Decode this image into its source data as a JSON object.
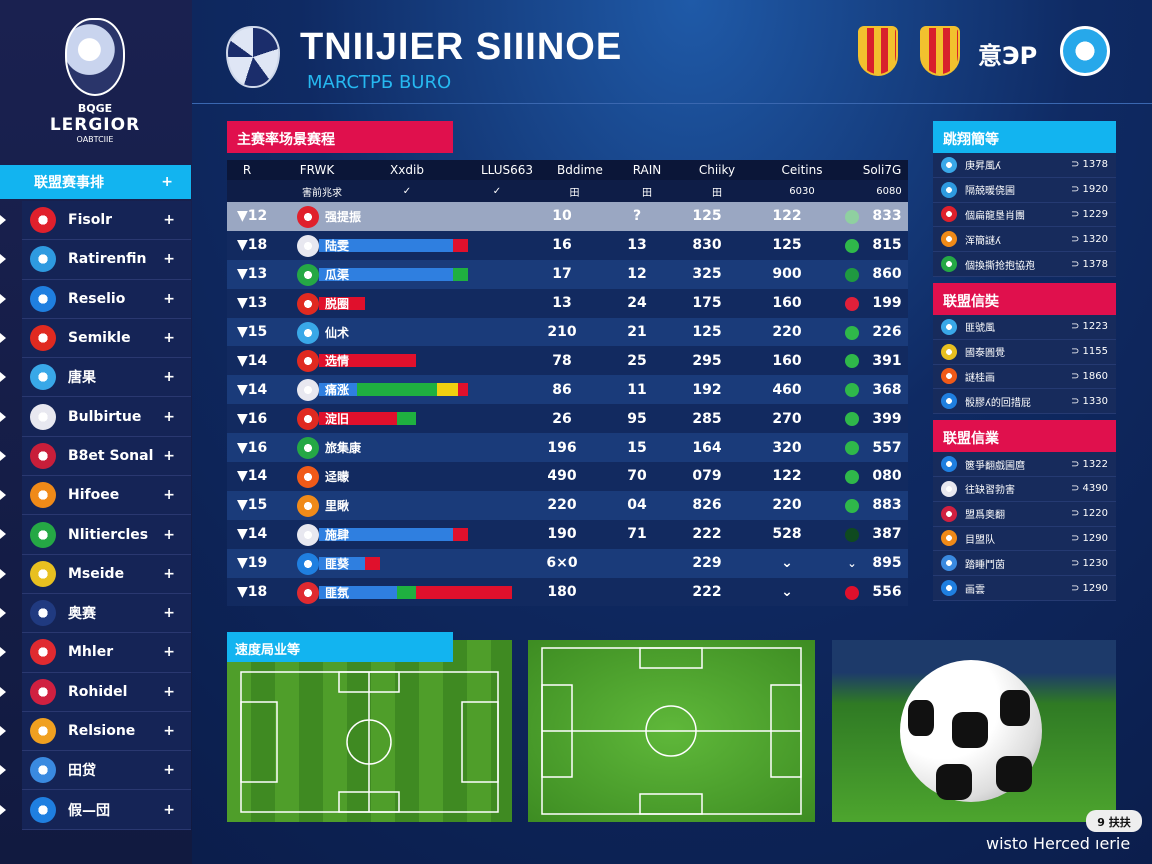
{
  "sidebar": {
    "logo": {
      "line1": "BQGE",
      "line2": "LERGIOR",
      "line3": "OABTCIIE"
    },
    "header": "联盟赛事排",
    "items": [
      {
        "label": "Fisolr",
        "color": "#e0202c"
      },
      {
        "label": "Ratirenfin",
        "color": "#2e9ae0"
      },
      {
        "label": "Reselio",
        "color": "#1f7fe0"
      },
      {
        "label": "Semikle",
        "color": "#e02a20"
      },
      {
        "label": "唐果",
        "color": "#39a8e8"
      },
      {
        "label": "Bulbirtue",
        "color": "#e8e8f0"
      },
      {
        "label": "B8et Sonal",
        "color": "#c81e3a"
      },
      {
        "label": "Hifoee",
        "color": "#f08a18"
      },
      {
        "label": "Nlitiercles",
        "color": "#25a845"
      },
      {
        "label": "Mseide",
        "color": "#e8c020"
      },
      {
        "label": "奥赛",
        "color": "#203a80"
      },
      {
        "label": "Mhler",
        "color": "#e02a30"
      },
      {
        "label": "Rohidel",
        "color": "#d02040"
      },
      {
        "label": "Relsione",
        "color": "#f0a020"
      },
      {
        "label": "田贷",
        "color": "#3a8ae0"
      },
      {
        "label": "假—団",
        "color": "#1f7fe0"
      }
    ],
    "plus": "+"
  },
  "header": {
    "title": "TNIIJIER SIIINOE",
    "subtitle": "MARCTPБ BURO",
    "right_text": "意ЭP"
  },
  "table": {
    "title": "主赛率场景赛程",
    "columns": [
      "R",
      "FRWK",
      "Xxdib",
      "LLUS663",
      "Bddime",
      "RAIN",
      "Chiiky",
      "Ceitins",
      "Soli7G"
    ],
    "subheader": [
      "害前兆求",
      "✓",
      "✓",
      "田",
      "田",
      "田",
      "6030",
      "6080"
    ],
    "rows": [
      {
        "rank": "▼12",
        "team": "强提振",
        "logo": "#e0202c",
        "bar": [],
        "v": [
          "10",
          "?",
          "125",
          "122",
          "833"
        ],
        "status": "#8fd0a0",
        "selected": true
      },
      {
        "rank": "▼18",
        "team": "陆雯",
        "logo": "#e8e8f0",
        "bar": [
          [
            "#2f7fe0",
            64
          ],
          [
            "#e0102c",
            7
          ]
        ],
        "v": [
          "16",
          "13",
          "830",
          "125",
          "815"
        ],
        "status": "#2fb84a"
      },
      {
        "rank": "▼13",
        "team": "瓜渠",
        "logo": "#25a845",
        "bar": [
          [
            "#2f7fe0",
            64
          ],
          [
            "#1fb040",
            7
          ]
        ],
        "v": [
          "17",
          "12",
          "325",
          "900",
          "860"
        ],
        "status": "#1f9a40"
      },
      {
        "rank": "▼13",
        "team": "脱圈",
        "logo": "#e02a20",
        "bar": [
          [
            "#e0102c",
            22
          ]
        ],
        "v": [
          "13",
          "24",
          "175",
          "160",
          "199"
        ],
        "status": "#e0203a"
      },
      {
        "rank": "▼15",
        "team": "仙术",
        "logo": "#39a8e8",
        "bar": [],
        "v": [
          "210",
          "21",
          "125",
          "220",
          "226"
        ],
        "status": "#2fb84a"
      },
      {
        "rank": "▼14",
        "team": "选情",
        "logo": "#e02a20",
        "bar": [
          [
            "#e0102c",
            46
          ]
        ],
        "v": [
          "78",
          "25",
          "295",
          "160",
          "391"
        ],
        "status": "#2fb84a"
      },
      {
        "rank": "▼14",
        "team": "痛涨",
        "logo": "#e8e8f0",
        "bar": [
          [
            "#2f7fe0",
            18
          ],
          [
            "#1fb040",
            38
          ],
          [
            "#f0d010",
            10
          ],
          [
            "#e0102c",
            5
          ]
        ],
        "v": [
          "86",
          "11",
          "192",
          "460",
          "368"
        ],
        "status": "#2fb84a"
      },
      {
        "rank": "▼16",
        "team": "淀旧",
        "logo": "#e02a20",
        "bar": [
          [
            "#e0102c",
            37
          ],
          [
            "#1fb040",
            9
          ]
        ],
        "v": [
          "26",
          "95",
          "285",
          "270",
          "399"
        ],
        "status": "#2fb84a"
      },
      {
        "rank": "▼16",
        "team": "旅集康",
        "logo": "#25a845",
        "bar": [],
        "v": [
          "196",
          "15",
          "164",
          "320",
          "557"
        ],
        "status": "#2fb84a"
      },
      {
        "rank": "▼14",
        "team": "迳矇",
        "logo": "#f05a18",
        "bar": [],
        "v": [
          "490",
          "70",
          "079",
          "122",
          "080"
        ],
        "status": "#2fb84a"
      },
      {
        "rank": "▼15",
        "team": "里瞅",
        "logo": "#f08a18",
        "bar": [],
        "v": [
          "220",
          "04",
          "826",
          "220",
          "883"
        ],
        "status": "#2fb84a"
      },
      {
        "rank": "▼14",
        "team": "施肆",
        "logo": "#e8e8f0",
        "bar": [
          [
            "#2f7fe0",
            64
          ],
          [
            "#e0102c",
            7
          ]
        ],
        "v": [
          "190",
          "71",
          "222",
          "528",
          "387"
        ],
        "status": "#0f4a20"
      },
      {
        "rank": "▼19",
        "team": "匪葵",
        "logo": "#1f7fe0",
        "bar": [
          [
            "#2f7fe0",
            22
          ],
          [
            "#e0102c",
            7
          ]
        ],
        "v": [
          "6×0",
          "",
          "229",
          "⌄",
          "895"
        ],
        "status": "",
        "status_text": "⌄"
      },
      {
        "rank": "▼18",
        "team": "匪氛",
        "logo": "#e02a30",
        "bar": [
          [
            "#2f7fe0",
            37
          ],
          [
            "#1fb040",
            9
          ],
          [
            "#e0102c",
            46
          ]
        ],
        "v": [
          "180",
          "",
          "222",
          "⌄",
          "556"
        ],
        "status": "#e0102c"
      }
    ]
  },
  "right": {
    "sections": [
      {
        "title": "跳翔簡等",
        "color": "#12b4f0",
        "items": [
          {
            "n": "庚昇風ʎ",
            "v": "⊃ 1378",
            "c": "#39a8e8"
          },
          {
            "n": "隔兢暖侥圃",
            "v": "⊃ 1920",
            "c": "#2e9ae0"
          },
          {
            "n": "個扁龍垦肖團",
            "v": "⊃ 1229",
            "c": "#e0202c"
          },
          {
            "n": "浑簡謎ʎ",
            "v": "⊃ 1320",
            "c": "#f08a18"
          },
          {
            "n": "個換撕抢抱協孢",
            "v": "⊃ 1378",
            "c": "#25a845"
          }
        ]
      },
      {
        "title": "联盟信奘",
        "color": "#e0104d",
        "items": [
          {
            "n": "匪號風",
            "v": "⊃ 1223",
            "c": "#39a8e8"
          },
          {
            "n": "國泰圓覺",
            "v": "⊃ 1155",
            "c": "#e8c020"
          },
          {
            "n": "謎桂画",
            "v": "⊃ 1860",
            "c": "#f05a18"
          },
          {
            "n": "骰膠ʎ的回措屁",
            "v": "⊃ 1330",
            "c": "#1f7fe0"
          }
        ]
      },
      {
        "title": "联盟信業",
        "color": "#e0104d",
        "items": [
          {
            "n": "篋爭翻戲圃麿",
            "v": "⊃ 1322",
            "c": "#1f7fe0"
          },
          {
            "n": "往缺習勃害",
            "v": "⊃ 4390",
            "c": "#e8e8f0"
          },
          {
            "n": "盟爲奥翻",
            "v": "⊃ 1220",
            "c": "#d02040"
          },
          {
            "n": "目盟队",
            "v": "⊃ 1290",
            "c": "#f08a18"
          },
          {
            "n": "踏睡鬥茵",
            "v": "⊃ 1230",
            "c": "#3a8ae0"
          },
          {
            "n": "画雲",
            "v": "⊃ 1290",
            "c": "#1f7fe0"
          }
        ]
      }
    ]
  },
  "bottom": {
    "pitch_label": "速度局业等",
    "badge": "9 扶扶",
    "footer": "wisto Herced ıerie"
  }
}
